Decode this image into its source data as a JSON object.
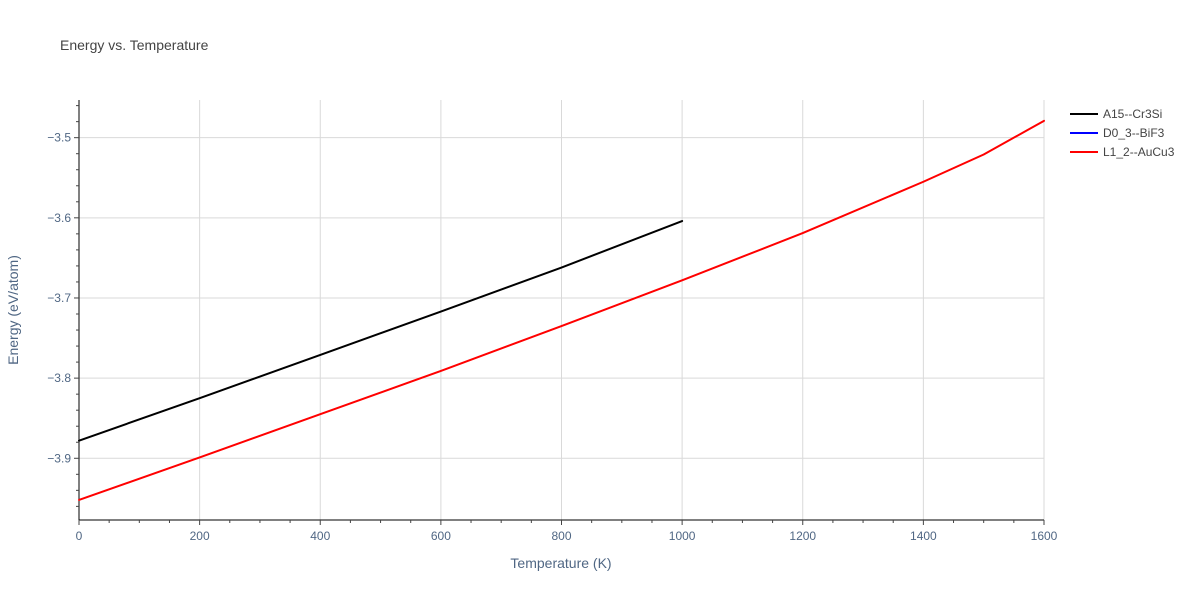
{
  "chart_data": {
    "type": "line",
    "title": "Energy vs. Temperature",
    "xlabel": "Temperature (K)",
    "ylabel": "Energy (eV/atom)",
    "xlim": [
      0,
      1600
    ],
    "ylim": [
      -3.977,
      -3.453
    ],
    "xticks": [
      0,
      200,
      400,
      600,
      800,
      1000,
      1200,
      1400,
      1600
    ],
    "yticks": [
      -3.9,
      -3.8,
      -3.7,
      -3.6,
      -3.5
    ],
    "xtick_labels": [
      "0",
      "200",
      "400",
      "600",
      "800",
      "1000",
      "1200",
      "1400",
      "1600"
    ],
    "ytick_labels": [
      "−3.9",
      "−3.8",
      "−3.7",
      "−3.6",
      "−3.5"
    ],
    "grid": true,
    "legend_position": "top-right, outside plot",
    "series": [
      {
        "name": "A15--Cr3Si",
        "color": "#000000",
        "x": [
          0,
          200,
          400,
          600,
          800,
          1000
        ],
        "y": [
          -3.878,
          -3.825,
          -3.771,
          -3.717,
          -3.662,
          -3.604
        ]
      },
      {
        "name": "D0_3--BiF3",
        "color": "#0000ff",
        "x": [],
        "y": []
      },
      {
        "name": "L1_2--AuCu3",
        "color": "#ff0000",
        "x": [
          0,
          200,
          400,
          600,
          800,
          1000,
          1200,
          1400,
          1500,
          1600
        ],
        "y": [
          -3.952,
          -3.899,
          -3.845,
          -3.791,
          -3.735,
          -3.678,
          -3.619,
          -3.555,
          -3.521,
          -3.479
        ]
      }
    ]
  }
}
